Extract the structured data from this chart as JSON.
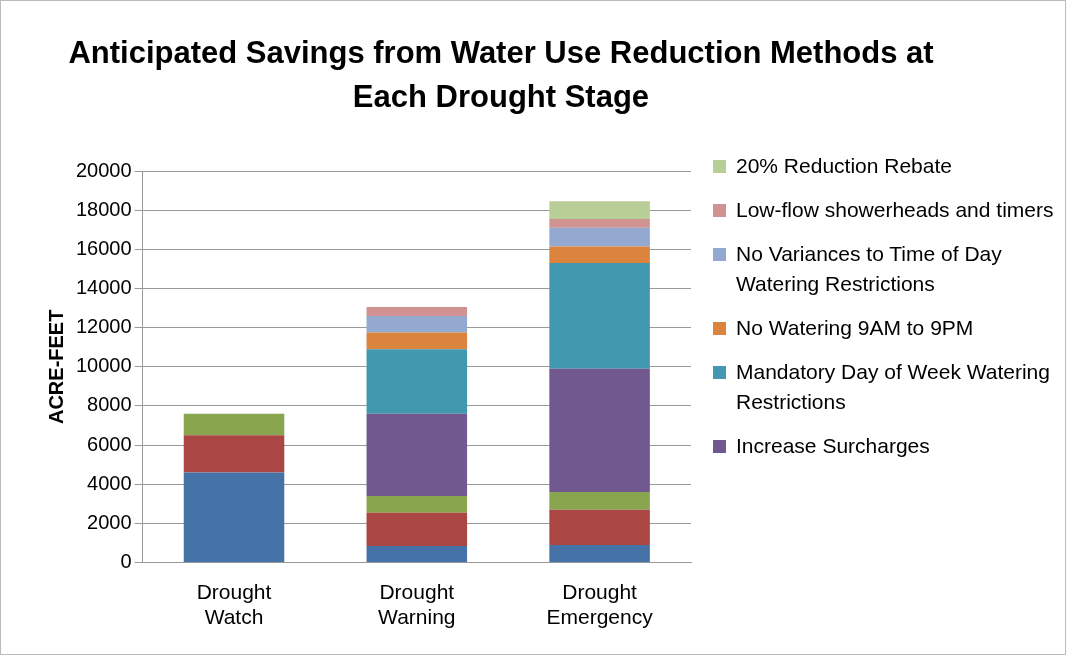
{
  "chart_data": {
    "type": "bar",
    "title": "Anticipated Savings from Water Use Reduction Methods at Each Drought Stage",
    "ylabel": "ACRE-FEET",
    "categories": [
      "Drought Watch",
      "Drought Warning",
      "Drought Emergency"
    ],
    "stacked": true,
    "ylim": [
      0,
      20000
    ],
    "yticks": [
      0,
      2000,
      4000,
      6000,
      8000,
      10000,
      12000,
      14000,
      16000,
      18000,
      20000
    ],
    "grid": "y",
    "legend": "right",
    "series": [
      {
        "color": "#4572a7",
        "values": [
          4600,
          850,
          900
        ]
      },
      {
        "color": "#aa4643",
        "values": [
          1900,
          1700,
          1800
        ]
      },
      {
        "color": "#89a54e",
        "values": [
          1100,
          850,
          900
        ]
      },
      {
        "name": "Increase Surcharges",
        "color": "#71588f",
        "values": [
          null,
          4200,
          6300
        ]
      },
      {
        "name": "Mandatory Day of Week Watering Restrictions",
        "color": "#4198af",
        "values": [
          null,
          3300,
          5400
        ]
      },
      {
        "name": "No Watering 9AM to 9PM",
        "color": "#db843d",
        "values": [
          null,
          850,
          850
        ]
      },
      {
        "name": "No Variances to Time of Day Watering Restrictions",
        "color": "#93a9cf",
        "values": [
          null,
          850,
          950
        ]
      },
      {
        "name": "Low-flow showerheads and timers",
        "color": "#d19392",
        "values": [
          null,
          450,
          450
        ]
      },
      {
        "name": "20% Reduction Rebate",
        "color": "#b9cd96",
        "values": [
          null,
          null,
          900
        ]
      }
    ]
  }
}
